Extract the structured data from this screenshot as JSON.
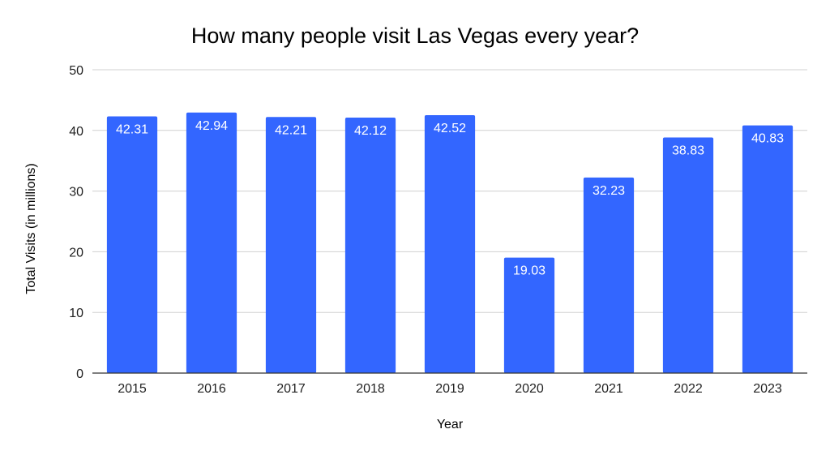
{
  "chart_data": {
    "type": "bar",
    "title": "How many people visit Las Vegas every year?",
    "xlabel": "Year",
    "ylabel": "Total Visits (in millions)",
    "categories": [
      "2015",
      "2016",
      "2017",
      "2018",
      "2019",
      "2020",
      "2021",
      "2022",
      "2023"
    ],
    "values": [
      42.31,
      42.94,
      42.21,
      42.12,
      42.52,
      19.03,
      32.23,
      38.83,
      40.83
    ],
    "data_labels": [
      "42.31",
      "42.94",
      "42.21",
      "42.12",
      "42.52",
      "19.03",
      "32.23",
      "38.83",
      "40.83"
    ],
    "ylim": [
      0,
      50
    ],
    "yticks": [
      "0",
      "10",
      "20",
      "30",
      "40",
      "50"
    ],
    "grid": true,
    "legend": "none",
    "colors": {
      "bar": "#3366ff",
      "grid": "#d0d0d0",
      "baseline": "#333333"
    }
  }
}
